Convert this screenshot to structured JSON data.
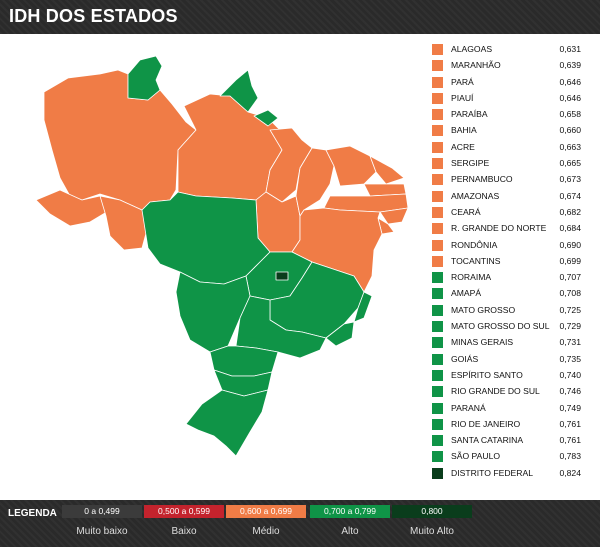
{
  "title": "IDH DOS ESTADOS",
  "colors": {
    "medio": "#f07c46",
    "alto": "#0f9447",
    "muito_alto": "#0a3d1c",
    "baixo": "#c4232d",
    "muito_baixo": "#3b3b3b"
  },
  "states": [
    {
      "name": "ALAGOAS",
      "value": "0,631",
      "class": "medio"
    },
    {
      "name": "MARANHÃO",
      "value": "0,639",
      "class": "medio"
    },
    {
      "name": "PARÁ",
      "value": "0,646",
      "class": "medio"
    },
    {
      "name": "PIAUÍ",
      "value": "0,646",
      "class": "medio"
    },
    {
      "name": "PARAÍBA",
      "value": "0,658",
      "class": "medio"
    },
    {
      "name": "BAHIA",
      "value": "0,660",
      "class": "medio"
    },
    {
      "name": "ACRE",
      "value": "0,663",
      "class": "medio"
    },
    {
      "name": "SERGIPE",
      "value": "0,665",
      "class": "medio"
    },
    {
      "name": "PERNAMBUCO",
      "value": "0,673",
      "class": "medio"
    },
    {
      "name": "AMAZONAS",
      "value": "0,674",
      "class": "medio"
    },
    {
      "name": "CEARÁ",
      "value": "0,682",
      "class": "medio"
    },
    {
      "name": "R. GRANDE DO NORTE",
      "value": "0,684",
      "class": "medio"
    },
    {
      "name": "RONDÔNIA",
      "value": "0,690",
      "class": "medio"
    },
    {
      "name": "TOCANTINS",
      "value": "0,699",
      "class": "medio"
    },
    {
      "name": "RORAIMA",
      "value": "0,707",
      "class": "alto"
    },
    {
      "name": "AMAPÁ",
      "value": "0,708",
      "class": "alto"
    },
    {
      "name": "MATO GROSSO",
      "value": "0,725",
      "class": "alto"
    },
    {
      "name": "MATO GROSSO DO SUL",
      "value": "0,729",
      "class": "alto"
    },
    {
      "name": "MINAS GERAIS",
      "value": "0,731",
      "class": "alto"
    },
    {
      "name": "GOIÁS",
      "value": "0,735",
      "class": "alto"
    },
    {
      "name": "ESPÍRITO SANTO",
      "value": "0,740",
      "class": "alto"
    },
    {
      "name": "RIO GRANDE DO SUL",
      "value": "0,746",
      "class": "alto"
    },
    {
      "name": "PARANÁ",
      "value": "0,749",
      "class": "alto"
    },
    {
      "name": "RIO DE JANEIRO",
      "value": "0,761",
      "class": "alto"
    },
    {
      "name": "SANTA CATARINA",
      "value": "0,761",
      "class": "alto"
    },
    {
      "name": "SÃO PAULO",
      "value": "0,783",
      "class": "alto"
    },
    {
      "name": "DISTRITO FEDERAL",
      "value": "0,824",
      "class": "muito_alto"
    }
  ],
  "legend": {
    "title": "LEGENDA",
    "classes": [
      {
        "range": "0 a 0,499",
        "label": "Muito baixo",
        "key": "muito_baixo"
      },
      {
        "range": "0,500 a 0,599",
        "label": "Baixo",
        "key": "baixo"
      },
      {
        "range": "0,600 a 0,699",
        "label": "Médio",
        "key": "medio"
      },
      {
        "range": "0,700 a 0,799",
        "label": "Alto",
        "key": "alto"
      },
      {
        "range": "0,800",
        "label": "Muito Alto",
        "key": "muito_alto"
      }
    ]
  }
}
